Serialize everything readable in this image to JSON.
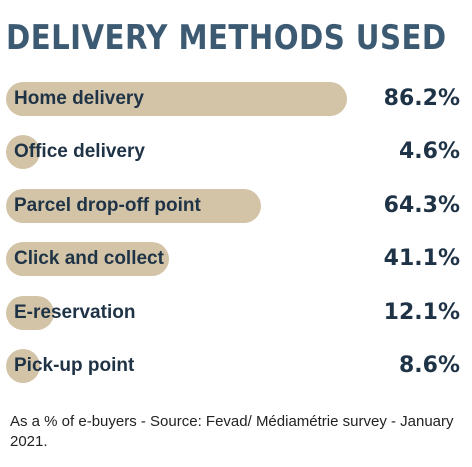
{
  "chart_data": {
    "type": "bar",
    "title": "DELIVERY METHODS USED",
    "categories": [
      "Home delivery",
      "Office delivery",
      "Parcel drop-off point",
      "Click and collect",
      "E-reservation",
      "Pick-up point"
    ],
    "values": [
      86.2,
      4.6,
      64.3,
      41.1,
      12.1,
      8.6
    ],
    "value_labels": [
      "86.2%",
      "4.6%",
      "64.3%",
      "41.1%",
      "12.1%",
      "8.6%"
    ],
    "unit": "%",
    "orientation": "horizontal",
    "xlim": [
      0,
      100
    ],
    "grid": false,
    "legend": "none",
    "note": "As a % of e-buyers - Source: Fevad/ Médiamétrie survey - January 2021."
  },
  "colors": {
    "title": "#3d5a73",
    "bar": "#d3c4a8",
    "text": "#1f3346"
  }
}
